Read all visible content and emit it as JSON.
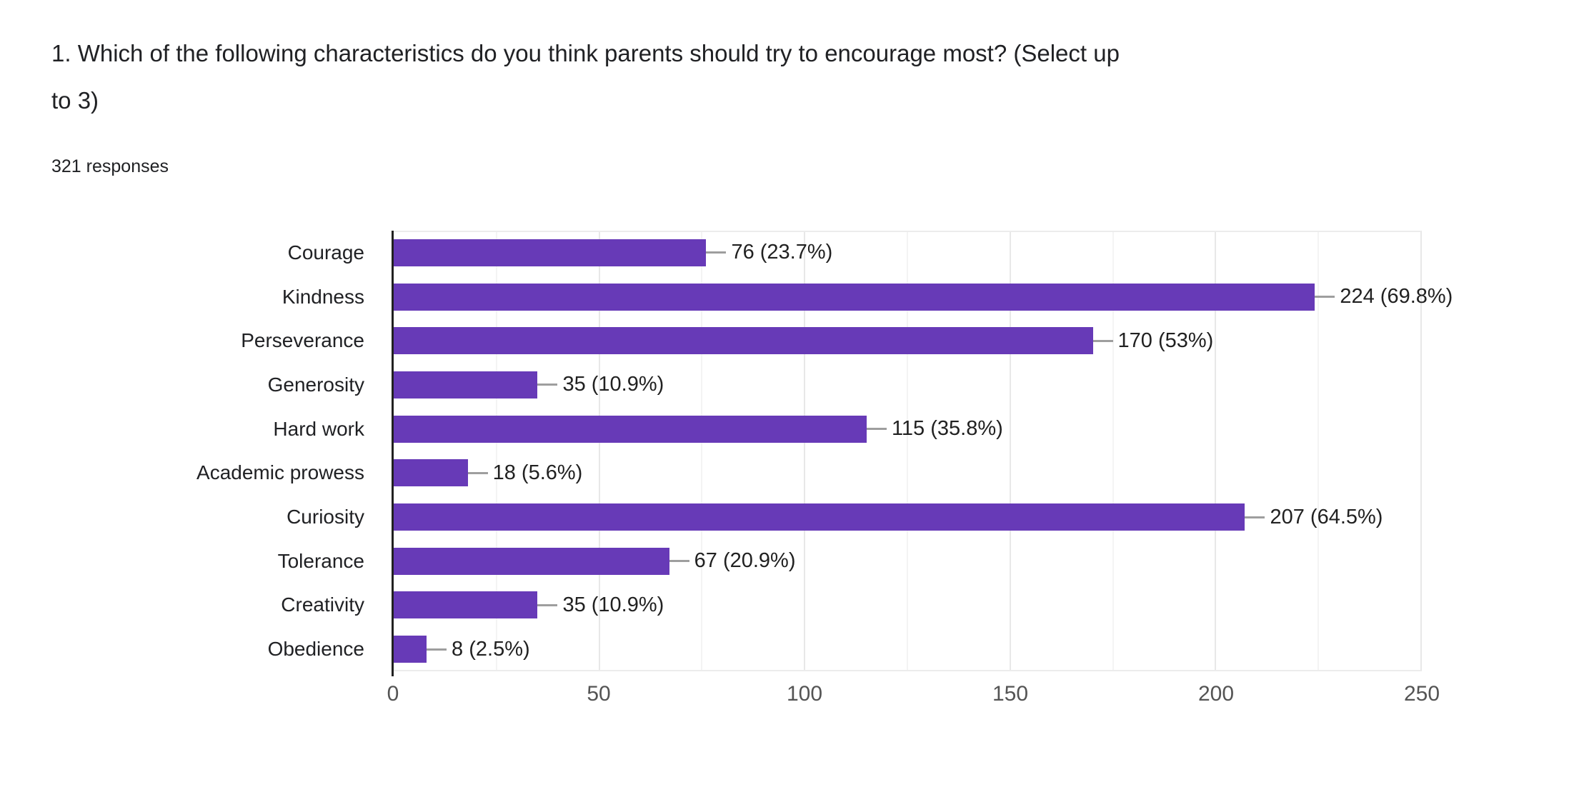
{
  "header": {
    "title": "1. Which of the following characteristics do you think parents should try to encourage most? (Select up to 3)",
    "responses": "321 responses"
  },
  "chart_data": {
    "type": "bar",
    "orientation": "horizontal",
    "categories": [
      "Courage",
      "Kindness",
      "Perseverance",
      "Generosity",
      "Hard work",
      "Academic prowess",
      "Curiosity",
      "Tolerance",
      "Creativity",
      "Obedience"
    ],
    "values": [
      76,
      224,
      170,
      35,
      115,
      18,
      207,
      67,
      35,
      8
    ],
    "value_labels": [
      "76 (23.7%)",
      "224 (69.8%)",
      "170 (53%)",
      "35 (10.9%)",
      "115 (35.8%)",
      "18 (5.6%)",
      "207 (64.5%)",
      "67 (20.9%)",
      "35 (10.9%)",
      "8 (2.5%)"
    ],
    "xlabel": "",
    "ylabel": "",
    "xlim": [
      0,
      250
    ],
    "xticks": [
      0,
      50,
      100,
      150,
      200,
      250
    ],
    "minor_tick_step": 25,
    "grid": true,
    "legend": false,
    "bar_color": "#673ab7",
    "callout_color": "#9e9e9e",
    "axis_color": "#212121"
  }
}
